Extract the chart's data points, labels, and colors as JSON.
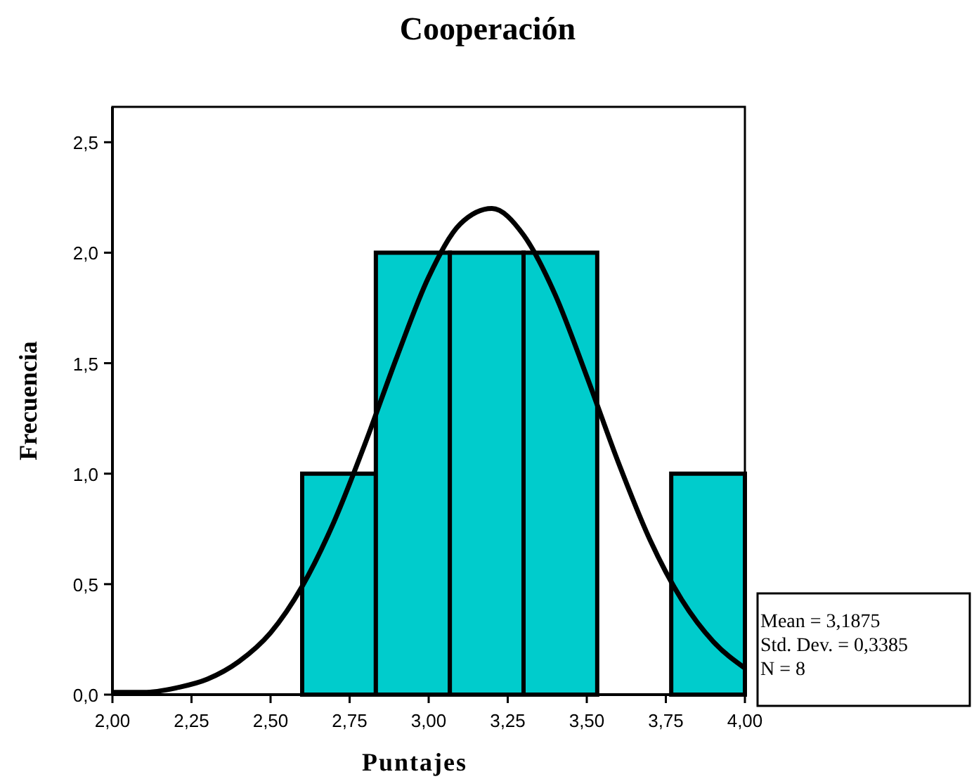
{
  "chart_data": {
    "type": "histogram",
    "title": "Cooperación",
    "xlabel": "Puntajes",
    "ylabel": "Frecuencia",
    "series": [
      {
        "color": "#00cccc",
        "bins": [
          2.6,
          2.833,
          3.067,
          3.3,
          3.533,
          3.767,
          4.0
        ],
        "values": [
          1,
          2,
          2,
          2,
          0,
          1
        ]
      },
      {
        "type": "line",
        "color": "#000000",
        "x": [
          2.0,
          2.1,
          2.2,
          2.3,
          2.4,
          2.5,
          2.6,
          2.7,
          2.8,
          2.9,
          3.0,
          3.1,
          3.2,
          3.3,
          3.4,
          3.5,
          3.6,
          3.7,
          3.8,
          3.9,
          4.0
        ],
        "values": [
          0.01,
          0.01,
          0.03,
          0.07,
          0.15,
          0.28,
          0.49,
          0.78,
          1.14,
          1.53,
          1.89,
          2.13,
          2.2,
          2.08,
          1.81,
          1.44,
          1.05,
          0.7,
          0.43,
          0.24,
          0.12
        ]
      }
    ],
    "xlim": [
      2.0,
      4.0
    ],
    "ylim": [
      0,
      2.66
    ],
    "xticks": [
      {
        "value": 2.0,
        "label": "2,00"
      },
      {
        "value": 2.25,
        "label": "2,25"
      },
      {
        "value": 2.5,
        "label": "2,50"
      },
      {
        "value": 2.75,
        "label": "2,75"
      },
      {
        "value": 3.0,
        "label": "3,00"
      },
      {
        "value": 3.25,
        "label": "3,25"
      },
      {
        "value": 3.5,
        "label": "3,50"
      },
      {
        "value": 3.75,
        "label": "3,75"
      },
      {
        "value": 4.0,
        "label": "4,00"
      }
    ],
    "yticks": [
      {
        "value": 0,
        "label": "0,0"
      },
      {
        "value": 0.5,
        "label": "0,5"
      },
      {
        "value": 1.0,
        "label": "1,0"
      },
      {
        "value": 1.5,
        "label": "1,5"
      },
      {
        "value": 2.0,
        "label": "2,0"
      },
      {
        "value": 2.5,
        "label": "2,5"
      }
    ],
    "annotations": [
      "Mean = 3,1875",
      "Std. Dev. = 0,3385",
      "N = 8"
    ]
  }
}
